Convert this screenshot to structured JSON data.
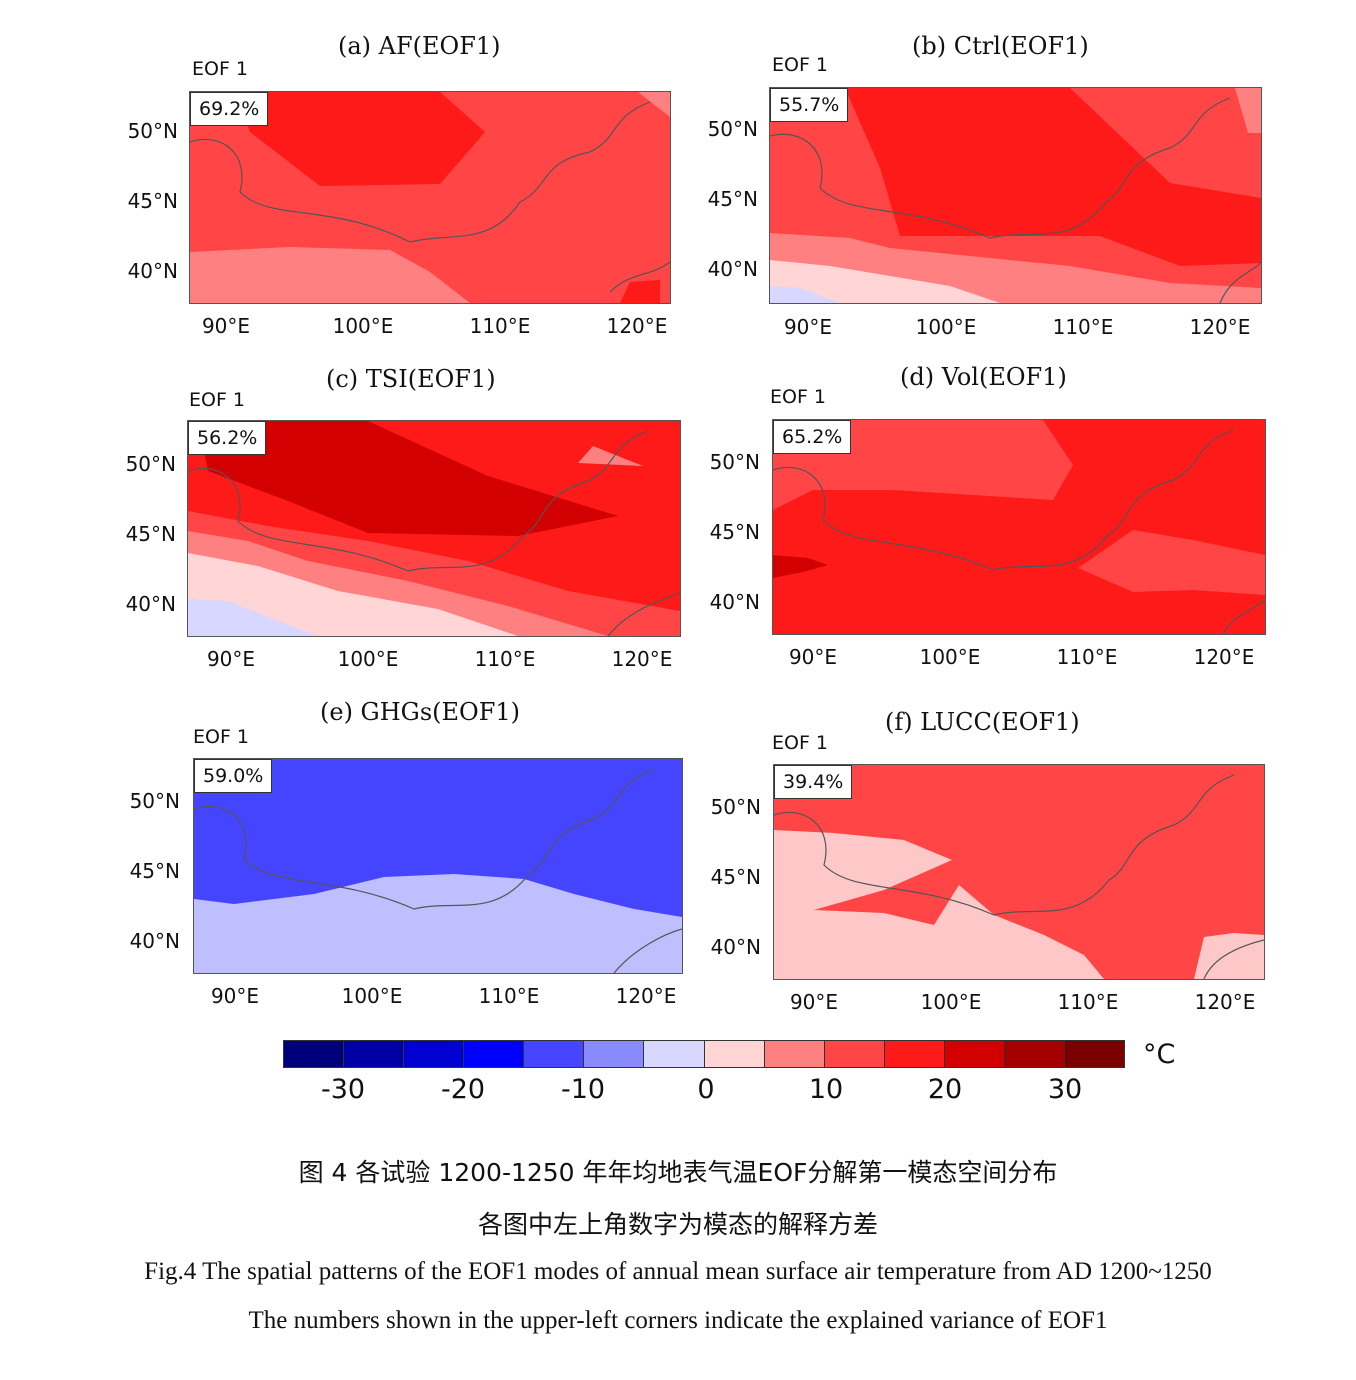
{
  "chart_data": [
    {
      "type": "heatmap",
      "title": "(a) AF(EOF1)",
      "panel_label": "EOF 1",
      "explained_variance": "69.2%",
      "yticks": [
        "50°N",
        "45°N",
        "40°N"
      ],
      "xticks": [
        "90°E",
        "100°E",
        "110°E",
        "120°E"
      ]
    },
    {
      "type": "heatmap",
      "title": "(b) Ctrl(EOF1)",
      "panel_label": "EOF 1",
      "explained_variance": "55.7%",
      "yticks": [
        "50°N",
        "45°N",
        "40°N"
      ],
      "xticks": [
        "90°E",
        "100°E",
        "110°E",
        "120°E"
      ]
    },
    {
      "type": "heatmap",
      "title": "(c) TSI(EOF1)",
      "panel_label": "EOF 1",
      "explained_variance": "56.2%",
      "yticks": [
        "50°N",
        "45°N",
        "40°N"
      ],
      "xticks": [
        "90°E",
        "100°E",
        "110°E",
        "120°E"
      ]
    },
    {
      "type": "heatmap",
      "title": "(d) Vol(EOF1)",
      "panel_label": "EOF 1",
      "explained_variance": "65.2%",
      "yticks": [
        "50°N",
        "45°N",
        "40°N"
      ],
      "xticks": [
        "90°E",
        "100°E",
        "110°E",
        "120°E"
      ]
    },
    {
      "type": "heatmap",
      "title": "(e) GHGs(EOF1)",
      "panel_label": "EOF 1",
      "explained_variance": "59.0%",
      "yticks": [
        "50°N",
        "45°N",
        "40°N"
      ],
      "xticks": [
        "90°E",
        "100°E",
        "110°E",
        "120°E"
      ]
    },
    {
      "type": "heatmap",
      "title": "(f) LUCC(EOF1)",
      "panel_label": "EOF 1",
      "explained_variance": "39.4%",
      "yticks": [
        "50°N",
        "45°N",
        "40°N"
      ],
      "xticks": [
        "90°E",
        "100°E",
        "110°E",
        "120°E"
      ]
    }
  ],
  "colorbar": {
    "colors": [
      "#00007a",
      "#0000a5",
      "#0000d2",
      "#0000ff",
      "#4545ff",
      "#8a8aff",
      "#d7d7ff",
      "#ffd5d5",
      "#ff8080",
      "#ff4545",
      "#ff1a1a",
      "#d20000",
      "#a50000",
      "#7a0000"
    ],
    "ticks": [
      "-30",
      "-20",
      "-10",
      "0",
      "10",
      "20",
      "30"
    ],
    "unit": "°C"
  },
  "caption": {
    "cn_line1": "图 4  各试验 1200-1250 年年均地表气温EOF分解第一模态空间分布",
    "cn_line2": "各图中左上角数字为模态的解释方差",
    "en_line1": "Fig.4 The spatial patterns of the EOF1 modes of annual mean surface air temperature from AD 1200~1250",
    "en_line2": "The numbers shown in the upper-left corners indicate the explained variance of EOF1"
  }
}
